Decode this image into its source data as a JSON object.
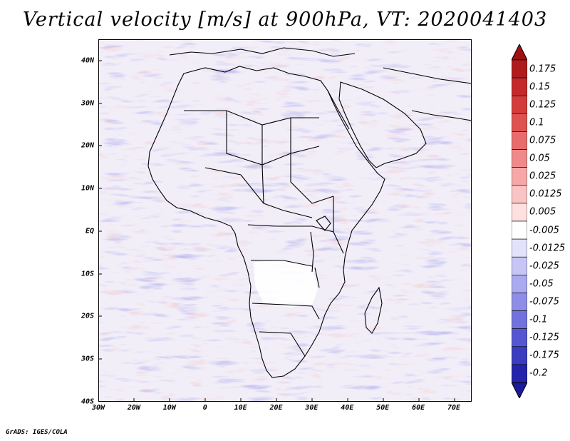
{
  "title": "Vertical velocity [m/s] at 900hPa, VT: 2020041403",
  "credit": "GrADS: IGES/COLA",
  "map": {
    "lon_range": [
      -30,
      75
    ],
    "lat_range": [
      -40,
      45
    ],
    "lat_labels": [
      {
        "value": 40,
        "text": "40N"
      },
      {
        "value": 30,
        "text": "30N"
      },
      {
        "value": 20,
        "text": "20N"
      },
      {
        "value": 10,
        "text": "10N"
      },
      {
        "value": 0,
        "text": "EQ"
      },
      {
        "value": -10,
        "text": "10S"
      },
      {
        "value": -20,
        "text": "20S"
      },
      {
        "value": -30,
        "text": "30S"
      },
      {
        "value": -40,
        "text": "40S"
      }
    ],
    "lon_labels": [
      {
        "value": -30,
        "text": "30W"
      },
      {
        "value": -20,
        "text": "20W"
      },
      {
        "value": -10,
        "text": "10W"
      },
      {
        "value": 0,
        "text": "0"
      },
      {
        "value": 10,
        "text": "10E"
      },
      {
        "value": 20,
        "text": "20E"
      },
      {
        "value": 30,
        "text": "30E"
      },
      {
        "value": 40,
        "text": "40E"
      },
      {
        "value": 50,
        "text": "50E"
      },
      {
        "value": 60,
        "text": "60E"
      },
      {
        "value": 70,
        "text": "70E"
      }
    ]
  },
  "colorbar": {
    "levels": [
      {
        "label": "0.175",
        "color": "#b01c1c"
      },
      {
        "label": "0.15",
        "color": "#c42a2a"
      },
      {
        "label": "0.125",
        "color": "#d43c3c"
      },
      {
        "label": "0.1",
        "color": "#e05252"
      },
      {
        "label": "0.075",
        "color": "#e86c6c"
      },
      {
        "label": "0.05",
        "color": "#f08a8a"
      },
      {
        "label": "0.025",
        "color": "#f6a8a8"
      },
      {
        "label": "0.0125",
        "color": "#fac4c4"
      },
      {
        "label": "0.005",
        "color": "#fde0e0"
      },
      {
        "label": "-0.005",
        "color": "#ffffff"
      },
      {
        "label": "-0.0125",
        "color": "#e2e2fc"
      },
      {
        "label": "-0.025",
        "color": "#c6c6f6"
      },
      {
        "label": "-0.05",
        "color": "#aaaaf0"
      },
      {
        "label": "-0.075",
        "color": "#8e8ee8"
      },
      {
        "label": "-0.1",
        "color": "#7272de"
      },
      {
        "label": "-0.125",
        "color": "#5656d2"
      },
      {
        "label": "-0.175",
        "color": "#3c3cc0"
      },
      {
        "label": "-0.2",
        "color": "#2424aa"
      }
    ],
    "top_color": "#a01010",
    "bottom_color": "#1a1a9a"
  }
}
